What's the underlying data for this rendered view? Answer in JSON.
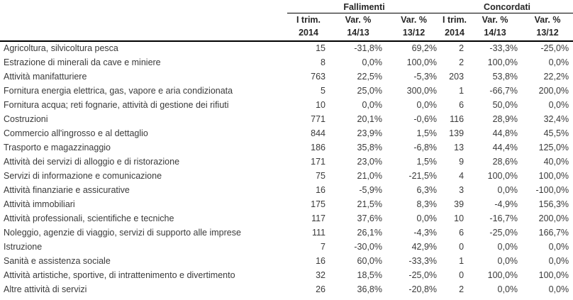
{
  "chart_data": {
    "type": "table",
    "column_groups": [
      "Fallimenti",
      "Concordati"
    ],
    "column_headers": [
      {
        "line1": "I trim.",
        "line2": "2014"
      },
      {
        "line1": "Var. %",
        "line2": "14/13"
      },
      {
        "line1": "Var. %",
        "line2": "13/12"
      },
      {
        "line1": "I trim.",
        "line2": "2014"
      },
      {
        "line1": "Var. %",
        "line2": "14/13"
      },
      {
        "line1": "Var. %",
        "line2": "13/12"
      }
    ],
    "rows": [
      {
        "label": "Agricoltura, silvicoltura pesca",
        "values": [
          "15",
          "-31,8%",
          "69,2%",
          "2",
          "-33,3%",
          "-25,0%"
        ]
      },
      {
        "label": "Estrazione di minerali da cave e miniere",
        "values": [
          "8",
          "0,0%",
          "100,0%",
          "2",
          "100,0%",
          "0,0%"
        ]
      },
      {
        "label": "Attività manifatturiere",
        "values": [
          "763",
          "22,5%",
          "-5,3%",
          "203",
          "53,8%",
          "22,2%"
        ]
      },
      {
        "label": "Fornitura energia elettrica, gas, vapore e aria condizionata",
        "values": [
          "5",
          "25,0%",
          "300,0%",
          "1",
          "-66,7%",
          "200,0%"
        ]
      },
      {
        "label": "Fornitura acqua; reti fognarie, attività di gestione dei rifiuti",
        "values": [
          "10",
          "0,0%",
          "0,0%",
          "6",
          "50,0%",
          "0,0%"
        ]
      },
      {
        "label": "Costruzioni",
        "values": [
          "771",
          "20,1%",
          "-0,6%",
          "116",
          "28,9%",
          "32,4%"
        ]
      },
      {
        "label": "Commercio all'ingrosso e al dettaglio",
        "values": [
          "844",
          "23,9%",
          "1,5%",
          "139",
          "44,8%",
          "45,5%"
        ]
      },
      {
        "label": "Trasporto e magazzinaggio",
        "values": [
          "186",
          "35,8%",
          "-6,8%",
          "13",
          "44,4%",
          "125,0%"
        ]
      },
      {
        "label": "Attività dei servizi di alloggio e di ristorazione",
        "values": [
          "171",
          "23,0%",
          "1,5%",
          "9",
          "28,6%",
          "40,0%"
        ]
      },
      {
        "label": "Servizi di informazione e comunicazione",
        "values": [
          "75",
          "21,0%",
          "-21,5%",
          "4",
          "100,0%",
          "100,0%"
        ]
      },
      {
        "label": "Attività finanziarie e assicurative",
        "values": [
          "16",
          "-5,9%",
          "6,3%",
          "3",
          "0,0%",
          "-100,0%"
        ]
      },
      {
        "label": "Attività immobiliari",
        "values": [
          "175",
          "21,5%",
          "8,3%",
          "39",
          "-4,9%",
          "156,3%"
        ]
      },
      {
        "label": "Attività professionali, scientifiche e tecniche",
        "values": [
          "117",
          "37,6%",
          "0,0%",
          "10",
          "-16,7%",
          "200,0%"
        ]
      },
      {
        "label": "Noleggio, agenzie di viaggio, servizi di supporto alle imprese",
        "values": [
          "111",
          "26,1%",
          "-4,3%",
          "6",
          "-25,0%",
          "166,7%"
        ]
      },
      {
        "label": "Istruzione",
        "values": [
          "7",
          "-30,0%",
          "42,9%",
          "0",
          "0,0%",
          "0,0%"
        ]
      },
      {
        "label": "Sanità e assistenza sociale",
        "values": [
          "16",
          "60,0%",
          "-33,3%",
          "1",
          "0,0%",
          "0,0%"
        ]
      },
      {
        "label": "Attività artistiche, sportive, di intrattenimento e divertimento",
        "values": [
          "32",
          "18,5%",
          "-25,0%",
          "0",
          "100,0%",
          "100,0%"
        ]
      },
      {
        "label": "Altre attività di servizi",
        "values": [
          "26",
          "36,8%",
          "-20,8%",
          "2",
          "0,0%",
          "0,0%"
        ]
      }
    ]
  }
}
